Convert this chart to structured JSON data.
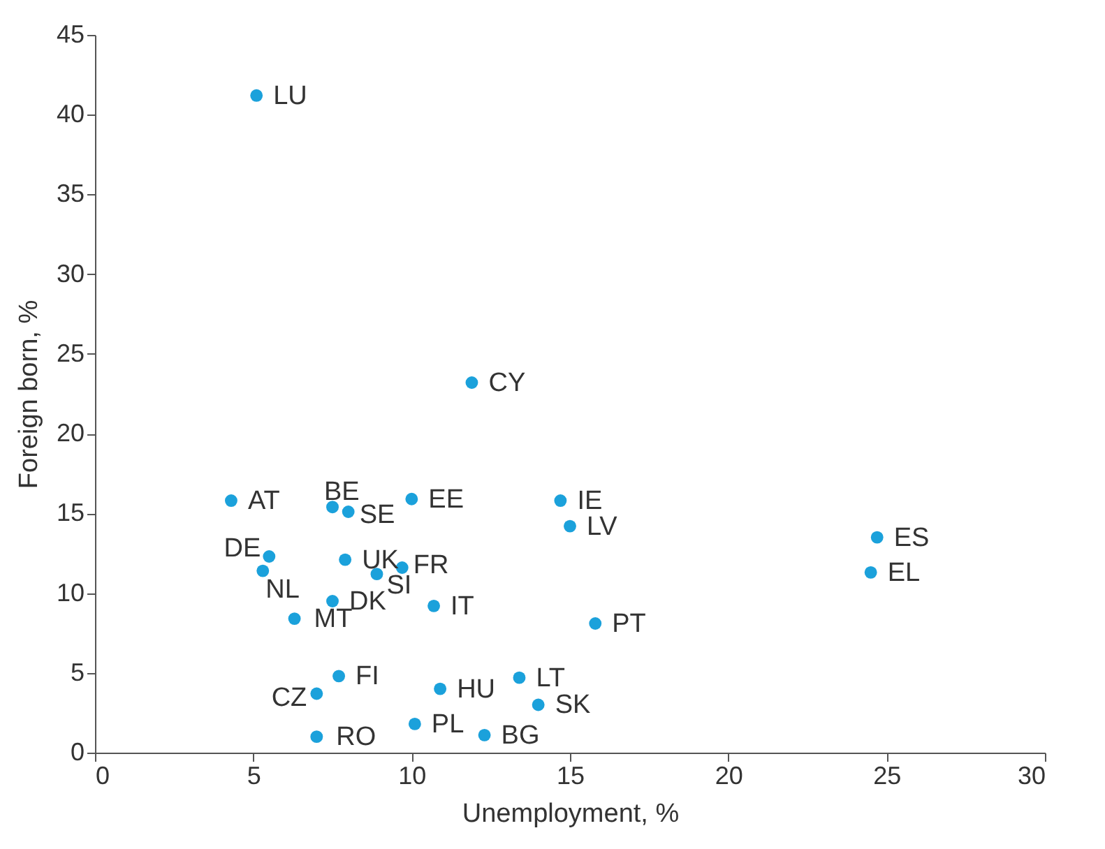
{
  "chart_data": {
    "type": "scatter",
    "xlabel": "Unemployment, %",
    "ylabel": "Foreign born, %",
    "xlim": [
      0,
      30
    ],
    "xticks": [
      0,
      5,
      10,
      15,
      20,
      25,
      30
    ],
    "ylim": [
      0,
      45
    ],
    "yticks": [
      0,
      5,
      10,
      15,
      20,
      25,
      30,
      35,
      40,
      45
    ],
    "grid": false,
    "marker": "circle",
    "x": [
      5.1,
      11.9,
      4.3,
      7.5,
      8.0,
      10.0,
      14.7,
      15.0,
      24.7,
      24.5,
      5.5,
      5.3,
      7.9,
      8.9,
      9.7,
      7.5,
      6.3,
      10.7,
      15.8,
      7.7,
      7.0,
      10.9,
      13.4,
      14.0,
      10.1,
      12.3,
      7.0
    ],
    "series": [
      {
        "color": "#1ba1db",
        "values": [
          41.2,
          23.2,
          15.8,
          15.4,
          15.1,
          15.9,
          15.8,
          14.2,
          13.5,
          11.3,
          12.3,
          11.4,
          12.1,
          11.2,
          11.6,
          9.5,
          8.4,
          9.2,
          8.1,
          4.8,
          3.7,
          4.0,
          4.7,
          3.0,
          1.8,
          1.1,
          1.0
        ]
      }
    ],
    "annotations": [
      {
        "text": "LU",
        "x": 5.1,
        "y": 41.2
      },
      {
        "text": "CY",
        "x": 11.9,
        "y": 23.2
      },
      {
        "text": "AT",
        "x": 4.3,
        "y": 15.8
      },
      {
        "text": "BE",
        "x": 7.5,
        "y": 15.4
      },
      {
        "text": "SE",
        "x": 8.0,
        "y": 15.1
      },
      {
        "text": "EE",
        "x": 10.0,
        "y": 15.9
      },
      {
        "text": "IE",
        "x": 14.7,
        "y": 15.8
      },
      {
        "text": "LV",
        "x": 15.0,
        "y": 14.2
      },
      {
        "text": "ES",
        "x": 24.7,
        "y": 13.5
      },
      {
        "text": "EL",
        "x": 24.5,
        "y": 11.3
      },
      {
        "text": "DE",
        "x": 5.5,
        "y": 12.3
      },
      {
        "text": "NL",
        "x": 5.3,
        "y": 11.4
      },
      {
        "text": "UK",
        "x": 7.9,
        "y": 12.1
      },
      {
        "text": "SI",
        "x": 8.9,
        "y": 11.2
      },
      {
        "text": "FR",
        "x": 9.7,
        "y": 11.6
      },
      {
        "text": "DK",
        "x": 7.5,
        "y": 9.5
      },
      {
        "text": "MT",
        "x": 6.3,
        "y": 8.4
      },
      {
        "text": "IT",
        "x": 10.7,
        "y": 9.2
      },
      {
        "text": "PT",
        "x": 15.8,
        "y": 8.1
      },
      {
        "text": "FI",
        "x": 7.7,
        "y": 4.8
      },
      {
        "text": "CZ",
        "x": 7.0,
        "y": 3.7
      },
      {
        "text": "HU",
        "x": 10.9,
        "y": 4.0
      },
      {
        "text": "LT",
        "x": 13.4,
        "y": 4.7
      },
      {
        "text": "SK",
        "x": 14.0,
        "y": 3.0
      },
      {
        "text": "PL",
        "x": 10.1,
        "y": 1.8
      },
      {
        "text": "BG",
        "x": 12.3,
        "y": 1.1
      },
      {
        "text": "RO",
        "x": 7.0,
        "y": 1.0
      }
    ]
  }
}
